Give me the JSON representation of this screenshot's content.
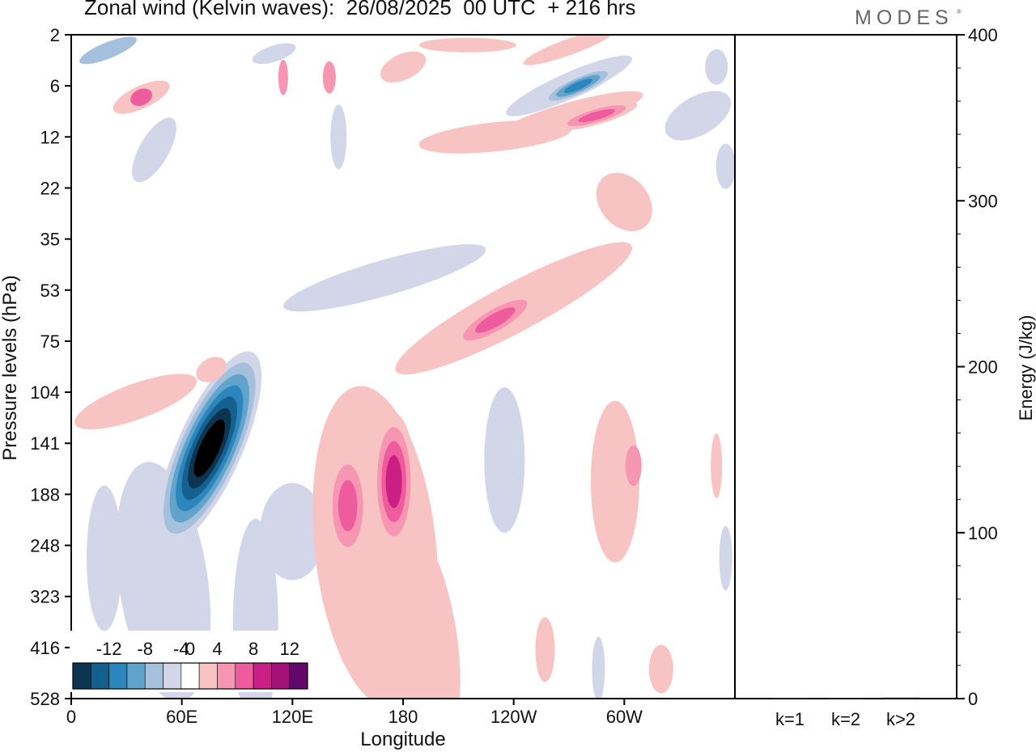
{
  "header": {
    "title": "Zonal wind (Kelvin waves):  26/08/2025  00 UTC  + 216 hrs",
    "logo": "MODES",
    "logo_mark": "®"
  },
  "chart_data": [
    {
      "type": "heatmap",
      "title": "Zonal wind (Kelvin waves):  26/08/2025  00 UTC  + 216 hrs",
      "xlabel": "Longitude",
      "ylabel": "Pressure levels (hPa)",
      "x_ticks": [
        "0",
        "60E",
        "120E",
        "180",
        "120W",
        "60W"
      ],
      "x_tick_degrees": [
        0,
        60,
        120,
        180,
        240,
        300
      ],
      "xlim": [
        0,
        360
      ],
      "y_ticks": [
        "2",
        "6",
        "12",
        "22",
        "35",
        "53",
        "75",
        "104",
        "141",
        "188",
        "248",
        "323",
        "416",
        "528"
      ],
      "y_order": "top-to-bottom",
      "colorbar": {
        "labels": [
          "-12",
          "-8",
          "-4",
          "0",
          "4",
          "8",
          "12"
        ],
        "label_values": [
          -12,
          -8,
          -4,
          0,
          4,
          8,
          12
        ],
        "levels": [
          -14,
          -12,
          -10,
          -8,
          -6,
          -4,
          -2,
          2,
          4,
          6,
          8,
          10,
          12,
          14
        ],
        "colors": [
          "#0d3552",
          "#14608f",
          "#2a86bd",
          "#62a3cc",
          "#a4c0dc",
          "#d3d6e8",
          "#ffffff",
          "#f8c3c3",
          "#f796b2",
          "#ee5c9d",
          "#cb1f86",
          "#a31279",
          "#62086b"
        ]
      },
      "features": [
        {
          "name": "negative-core-60E",
          "lon": 75,
          "level": 145,
          "value": -14
        },
        {
          "name": "positive-blob-150E",
          "lon": 150,
          "level": 200,
          "value": 6
        },
        {
          "name": "positive-blob-175E",
          "lon": 175,
          "level": 175,
          "value": 8
        },
        {
          "name": "positive-band-120W",
          "lon": 230,
          "level": 65,
          "value": 6
        },
        {
          "name": "negative-band-upper-100W",
          "lon": 275,
          "level": 6,
          "value": -8
        },
        {
          "name": "positive-band-upper-80W",
          "lon": 285,
          "level": 9,
          "value": 6
        }
      ]
    },
    {
      "type": "bar",
      "categories": [
        "k=1",
        "k=2",
        "k>2"
      ],
      "values": [
        0.5,
        0.4,
        0.6
      ],
      "ylabel": "Energy (J/kg)",
      "y_ticks": [
        "0",
        "100",
        "200",
        "300",
        "400"
      ],
      "ylim": [
        0,
        400
      ]
    }
  ]
}
